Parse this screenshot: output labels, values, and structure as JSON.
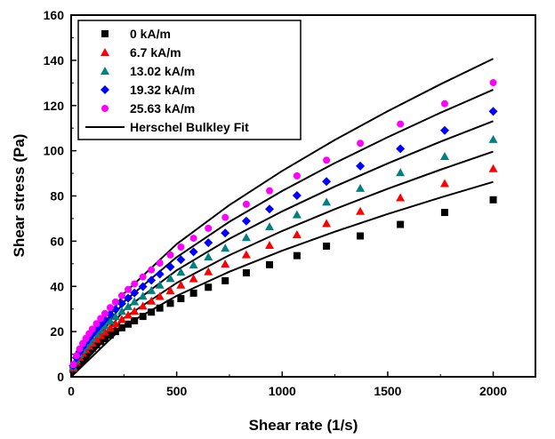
{
  "chart_data": {
    "type": "scatter",
    "xlabel": "Shear rate (1/s)",
    "ylabel": "Shear stress (Pa)",
    "xlim": [
      0,
      2200
    ],
    "ylim": [
      0,
      160
    ],
    "xticks": [
      0,
      500,
      1000,
      1500,
      2000
    ],
    "yticks": [
      0,
      20,
      40,
      60,
      80,
      100,
      120,
      140,
      160
    ],
    "legend_position": "top-left",
    "grid": false,
    "x": [
      10,
      25,
      40,
      55,
      70,
      85,
      100,
      120,
      140,
      160,
      185,
      210,
      240,
      270,
      300,
      340,
      380,
      420,
      470,
      520,
      580,
      650,
      730,
      830,
      940,
      1070,
      1210,
      1370,
      1560,
      1770,
      2000
    ],
    "series": [
      {
        "name": "0 kA/m",
        "marker": "square",
        "color": "#000000",
        "y": [
          3.2,
          5.6,
          7.4,
          8.9,
          10.3,
          11.5,
          12.7,
          14.2,
          15.6,
          16.9,
          18.5,
          20.0,
          21.7,
          23.3,
          24.8,
          26.7,
          28.6,
          30.4,
          32.5,
          34.6,
          37.0,
          39.6,
          42.5,
          46.0,
          49.6,
          53.6,
          57.8,
          62.3,
          67.4,
          72.7,
          78.3
        ]
      },
      {
        "name": "6.7 kA/m",
        "marker": "triangle",
        "color": "#ff0000",
        "y": [
          3.8,
          6.5,
          8.6,
          10.4,
          12.0,
          13.5,
          14.9,
          16.6,
          18.2,
          19.8,
          21.6,
          23.4,
          25.4,
          27.3,
          29.0,
          31.3,
          33.5,
          35.6,
          38.1,
          40.6,
          43.4,
          46.5,
          49.9,
          54.0,
          58.2,
          62.9,
          67.8,
          73.2,
          79.2,
          85.5,
          92.1
        ]
      },
      {
        "name": "13.02 kA/m",
        "marker": "triangle",
        "color": "#008080",
        "y": [
          4.4,
          7.5,
          9.9,
          11.9,
          13.7,
          15.4,
          17.0,
          19.0,
          20.8,
          22.6,
          24.7,
          26.7,
          29.0,
          31.1,
          33.2,
          35.7,
          38.2,
          40.6,
          43.5,
          46.3,
          49.5,
          53.0,
          56.9,
          61.6,
          66.4,
          71.7,
          77.3,
          83.4,
          90.3,
          97.5,
          105.0
        ]
      },
      {
        "name": "19.32 kA/m",
        "marker": "diamond",
        "color": "#0000ff",
        "y": [
          4.9,
          8.4,
          11.1,
          13.3,
          15.4,
          17.2,
          19.0,
          21.2,
          23.3,
          25.3,
          27.6,
          29.9,
          32.4,
          34.8,
          37.1,
          39.9,
          42.7,
          45.4,
          48.6,
          51.8,
          55.3,
          59.3,
          63.6,
          68.9,
          74.2,
          80.2,
          86.4,
          93.2,
          100.9,
          109.0,
          117.4
        ]
      },
      {
        "name": "25.63 kA/m",
        "marker": "circle",
        "color": "#ff00ff",
        "y": [
          5.4,
          9.3,
          12.3,
          14.8,
          17.0,
          19.1,
          21.1,
          23.5,
          25.8,
          28.0,
          30.6,
          33.1,
          35.9,
          38.6,
          41.1,
          44.2,
          47.3,
          50.3,
          53.9,
          57.4,
          61.3,
          65.7,
          70.5,
          76.3,
          82.3,
          88.9,
          95.8,
          103.3,
          111.8,
          120.8,
          130.1
        ]
      }
    ],
    "fit_name": "Herschel Bulkley Fit",
    "fit_color": "#000000",
    "fit_curves": [
      {
        "x": [
          0,
          250,
          500,
          750,
          1000,
          1250,
          1500,
          1750,
          2000
        ],
        "y": [
          0,
          22.5,
          35.8,
          46.5,
          55.8,
          64.2,
          72.0,
          79.3,
          86.2
        ]
      },
      {
        "x": [
          0,
          250,
          500,
          750,
          1000,
          1250,
          1500,
          1750,
          2000
        ],
        "y": [
          0,
          26.0,
          41.5,
          53.8,
          64.5,
          74.2,
          83.2,
          91.6,
          99.6
        ]
      },
      {
        "x": [
          0,
          250,
          500,
          750,
          1000,
          1250,
          1500,
          1750,
          2000
        ],
        "y": [
          0,
          29.5,
          47.1,
          61.1,
          73.2,
          84.2,
          94.4,
          104.0,
          113.1
        ]
      },
      {
        "x": [
          0,
          250,
          500,
          750,
          1000,
          1250,
          1500,
          1750,
          2000
        ],
        "y": [
          0,
          33.2,
          52.9,
          68.6,
          82.2,
          94.6,
          106.0,
          116.8,
          127.0
        ]
      },
      {
        "x": [
          0,
          250,
          500,
          750,
          1000,
          1250,
          1500,
          1750,
          2000
        ],
        "y": [
          0,
          36.8,
          58.7,
          76.0,
          91.1,
          104.8,
          117.5,
          129.4,
          140.7
        ]
      }
    ]
  }
}
